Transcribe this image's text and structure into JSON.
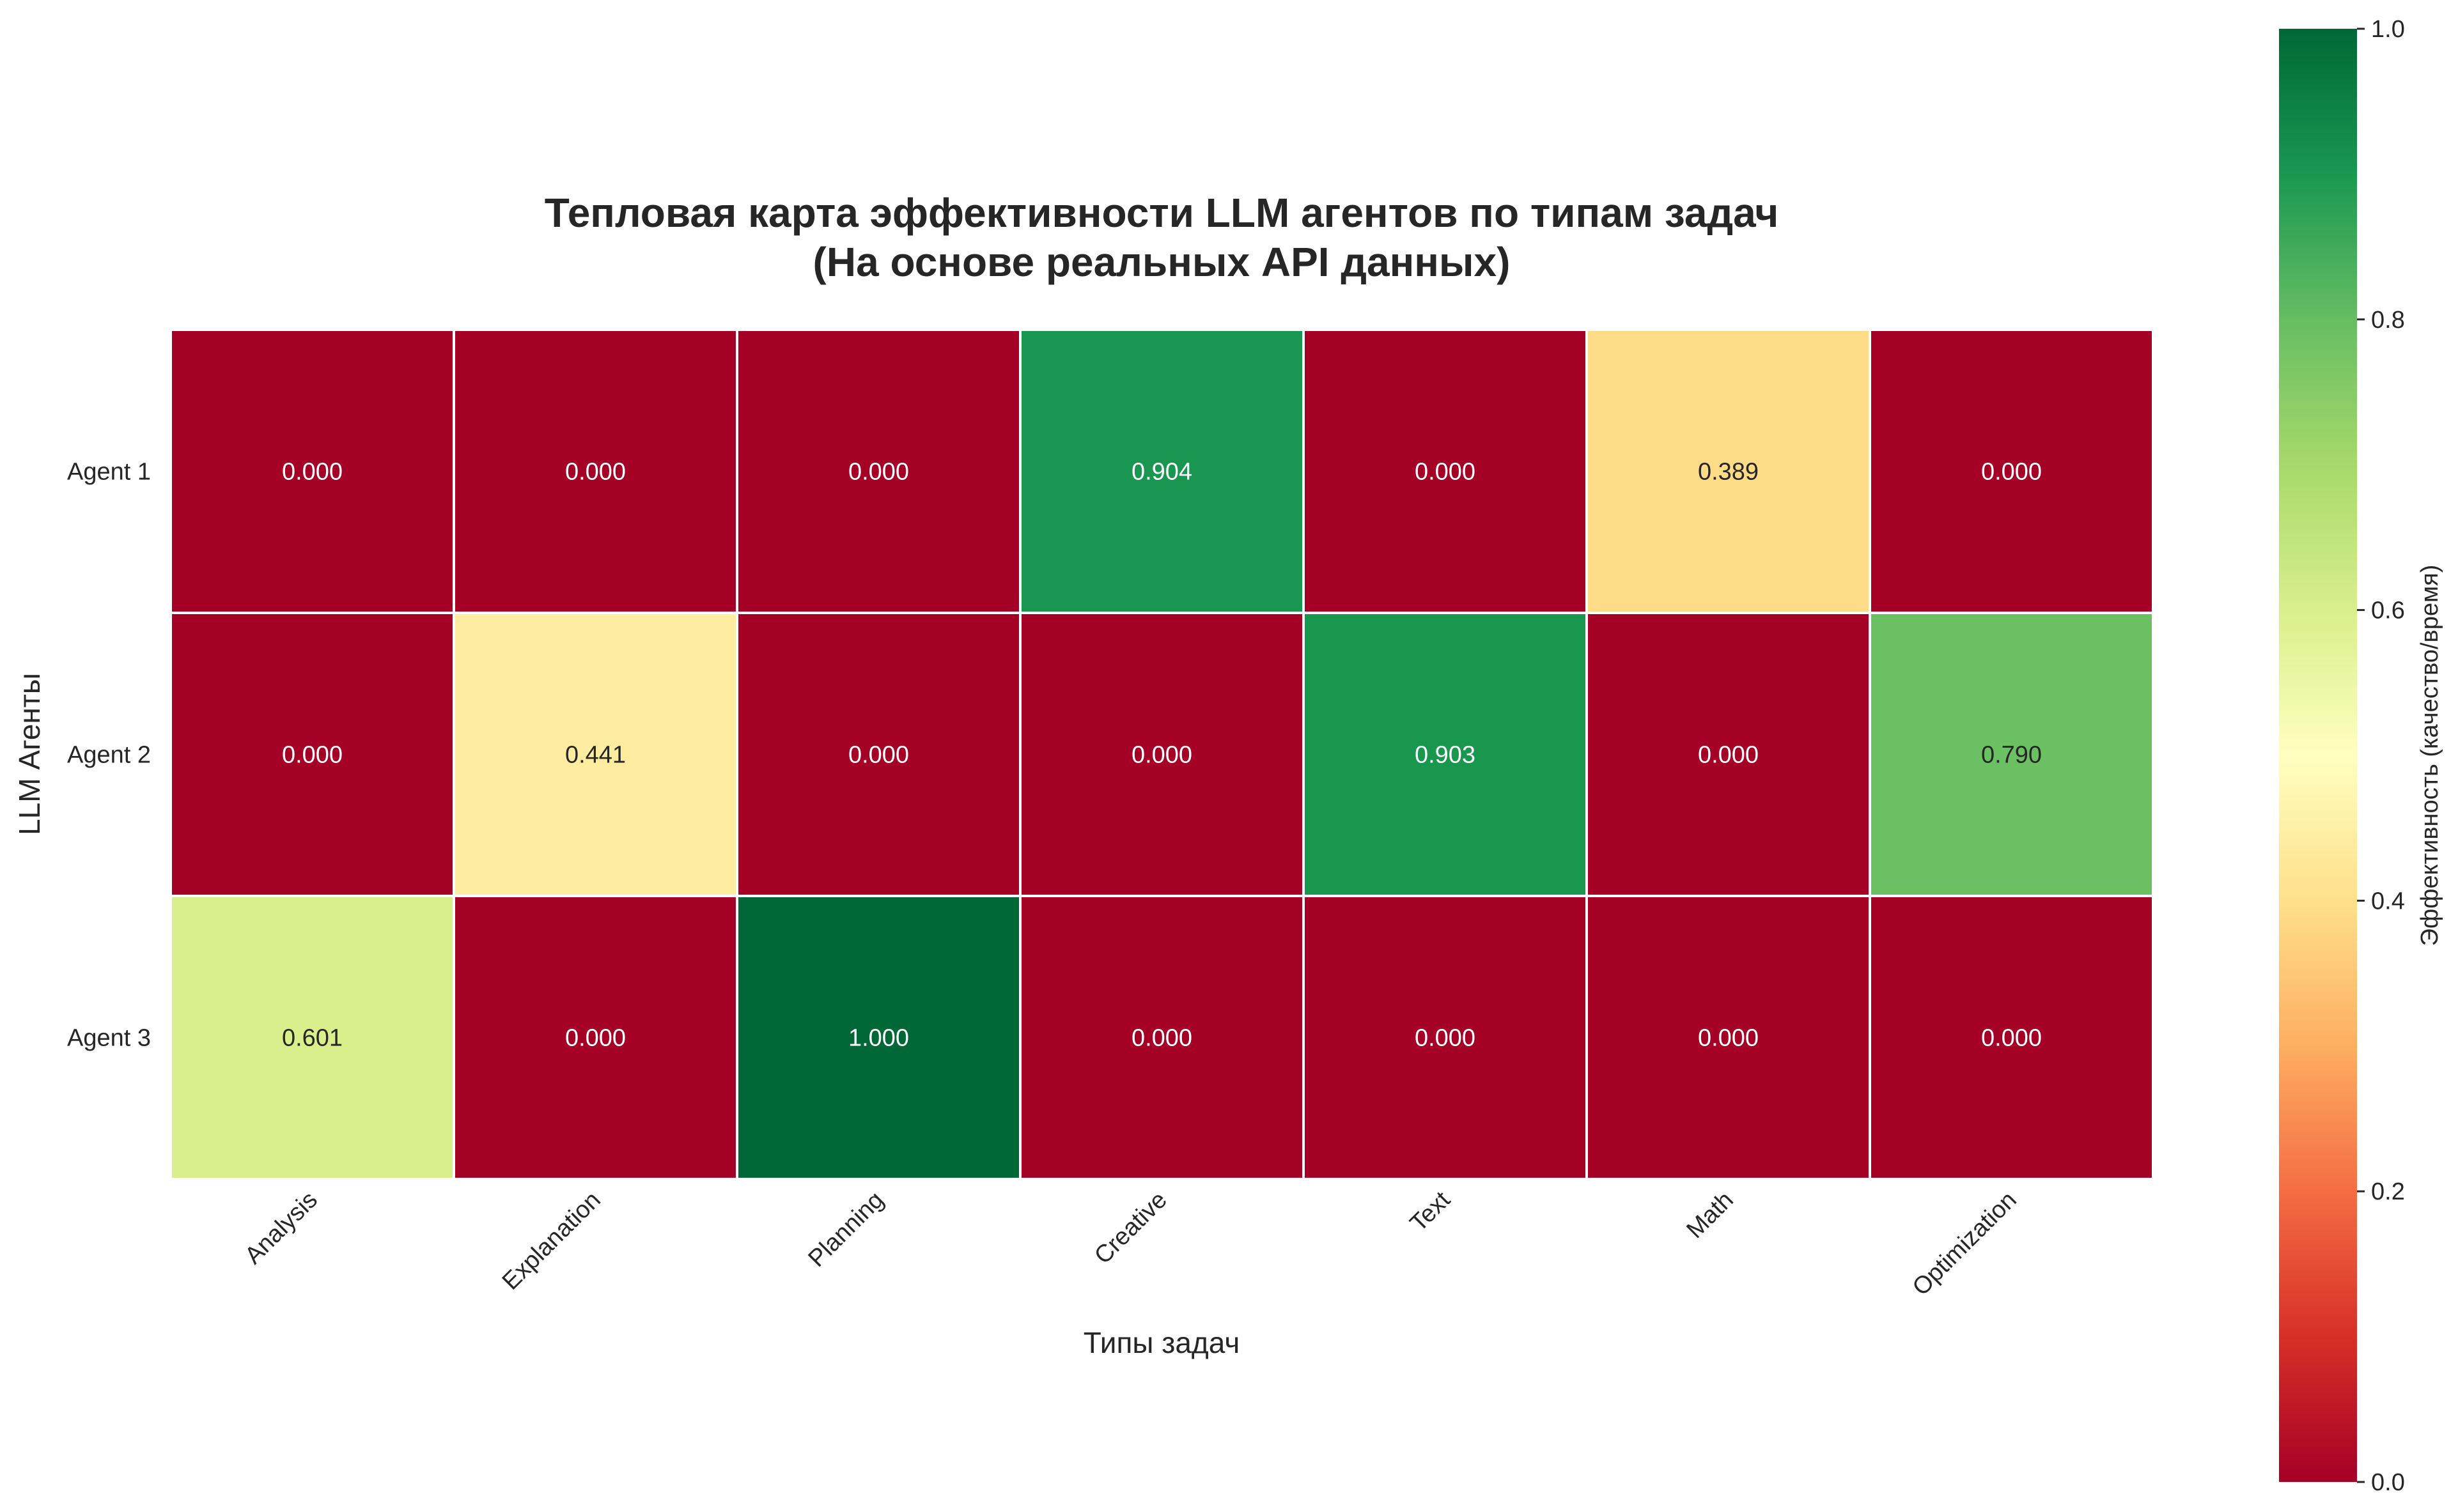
{
  "chart_data": {
    "type": "heatmap",
    "title": "Тепловая карта эффективности LLM агентов по типам задач",
    "subtitle": "(На основе реальных API данных)",
    "xlabel": "Типы задач",
    "ylabel": "LLM Агенты",
    "x_categories": [
      "Analysis",
      "Explanation",
      "Planning",
      "Creative",
      "Text",
      "Math",
      "Optimization"
    ],
    "y_categories": [
      "Agent 1",
      "Agent 2",
      "Agent 3"
    ],
    "values": [
      [
        0.0,
        0.0,
        0.0,
        0.904,
        0.0,
        0.389,
        0.0
      ],
      [
        0.0,
        0.441,
        0.0,
        0.0,
        0.903,
        0.0,
        0.79
      ],
      [
        0.601,
        0.0,
        1.0,
        0.0,
        0.0,
        0.0,
        0.0
      ]
    ],
    "value_format": "0.000",
    "colormap": "RdYlGn",
    "colorbar": {
      "label": "Эффективность (качество/время)",
      "range": [
        0.0,
        1.0
      ],
      "ticks": [
        "0.0",
        "0.2",
        "0.4",
        "0.6",
        "0.8",
        "1.0"
      ]
    },
    "grid": false,
    "cell_border_color": "#ffffff"
  }
}
